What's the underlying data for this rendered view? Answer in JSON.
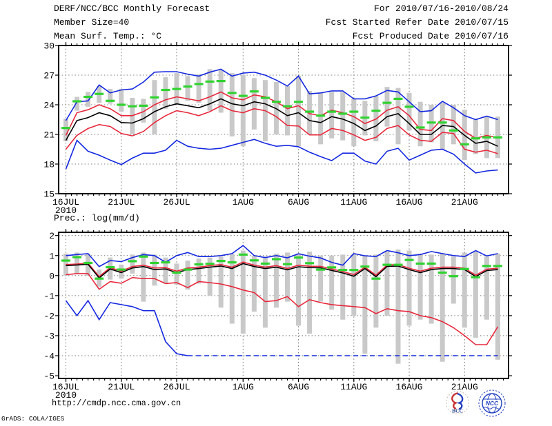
{
  "header": {
    "app_title": "DERF/NCC/BCC Monthly Forecast",
    "member_size": "Member Size=40",
    "forecast_range": "For 2010/07/16-2010/08/24",
    "refer_date": "Fcst Started Refer Date 2010/07/15",
    "produced_date": "Fcst Produced Date 2010/07/16"
  },
  "footer": {
    "url": "http://cmdp.ncc.cma.gov.cn",
    "credit": "GrADS: COLA/IGES"
  },
  "logos": {
    "bcc_label": "BCC",
    "ncc_label": "NCC"
  },
  "colors": {
    "blue": "#1428e0",
    "red": "#e8283c",
    "green": "#2fd32f",
    "black": "#000000",
    "bar_gray": "#c9c9c9",
    "grid_gray": "#7a7a7a",
    "logo_red": "#c83232",
    "logo_blue": "#2340c0",
    "logo_navy": "#1e3c8c",
    "logo_ring": "#c8b8a8"
  },
  "chart_data": [
    {
      "id": "temp",
      "type": "line",
      "title": "Mean Surf. Temp.: °C",
      "xlabel": "",
      "ylabel": "",
      "ylim": [
        15,
        30
      ],
      "y_ticks": [
        30,
        27,
        24,
        21,
        18,
        15
      ],
      "grid_y": [
        27,
        24,
        21,
        18
      ],
      "n_points": 40,
      "x_ticks": [
        {
          "i": 0,
          "label": "16JUL",
          "sub": "2010"
        },
        {
          "i": 5,
          "label": "21JUL"
        },
        {
          "i": 10,
          "label": "26JUL"
        },
        {
          "i": 16,
          "label": "1AUG"
        },
        {
          "i": 21,
          "label": "6AUG"
        },
        {
          "i": 26,
          "label": "11AUG"
        },
        {
          "i": 31,
          "label": "16AUG"
        },
        {
          "i": 36,
          "label": "21AUG"
        }
      ],
      "series": [
        {
          "name": "ensemble-max",
          "color_key": "blue",
          "values": [
            22.4,
            24.3,
            24.4,
            26.0,
            25.2,
            25.5,
            25.6,
            26.3,
            27.3,
            27.35,
            27.35,
            27.1,
            26.9,
            27.3,
            27.6,
            26.9,
            27.2,
            27.3,
            27.0,
            26.5,
            25.9,
            26.9,
            25.1,
            25.2,
            25.4,
            25.4,
            24.6,
            24.6,
            24.9,
            25.45,
            25.3,
            24.3,
            23.3,
            23.4,
            24.35,
            23.7,
            22.9,
            22.5,
            22.85,
            22.5
          ]
        },
        {
          "name": "upper-spread",
          "color_key": "red",
          "values": [
            20.9,
            23.2,
            23.5,
            24.0,
            23.6,
            22.9,
            22.9,
            23.3,
            24.0,
            24.5,
            24.8,
            24.6,
            24.4,
            24.8,
            25.3,
            24.7,
            24.5,
            25.0,
            24.8,
            24.3,
            23.6,
            23.9,
            23.1,
            22.9,
            23.45,
            23.2,
            22.8,
            22.1,
            22.55,
            23.45,
            23.8,
            22.9,
            21.5,
            21.4,
            22.6,
            22.4,
            21.3,
            20.6,
            20.9,
            20.65
          ]
        },
        {
          "name": "ensemble-mean",
          "color_key": "black",
          "values": [
            20.4,
            22.4,
            22.7,
            23.2,
            22.9,
            22.2,
            22.15,
            22.6,
            23.3,
            23.8,
            24.1,
            23.9,
            23.7,
            24.1,
            24.6,
            24.1,
            23.9,
            24.3,
            24.1,
            23.6,
            22.9,
            23.2,
            22.4,
            22.2,
            22.8,
            22.55,
            22.1,
            21.4,
            21.85,
            22.8,
            23.1,
            22.1,
            21.0,
            21.0,
            21.9,
            21.8,
            20.9,
            20.1,
            20.3,
            19.8
          ]
        },
        {
          "name": "lower-spread",
          "color_key": "red",
          "values": [
            19.5,
            20.9,
            21.6,
            22.0,
            21.8,
            21.1,
            20.85,
            21.3,
            22.2,
            22.9,
            23.4,
            23.2,
            22.9,
            23.3,
            23.9,
            23.4,
            23.2,
            23.6,
            23.4,
            22.8,
            21.9,
            21.85,
            20.95,
            20.95,
            21.6,
            21.4,
            20.95,
            20.4,
            20.7,
            21.6,
            21.9,
            20.95,
            20.4,
            20.3,
            21.2,
            21.1,
            19.5,
            19.2,
            19.4,
            19.05
          ]
        },
        {
          "name": "ensemble-min",
          "color_key": "blue",
          "values": [
            17.5,
            20.4,
            19.3,
            18.9,
            18.4,
            17.95,
            18.6,
            19.1,
            19.1,
            19.4,
            20.4,
            19.8,
            19.6,
            19.5,
            19.6,
            19.9,
            20.2,
            20.5,
            20.1,
            19.8,
            19.9,
            19.75,
            19.2,
            18.75,
            18.35,
            19.1,
            19.1,
            18.3,
            18.0,
            19.3,
            19.6,
            18.4,
            18.9,
            19.4,
            19.5,
            19.0,
            18.0,
            17.1,
            17.3,
            17.4
          ]
        }
      ],
      "dashes": {
        "name": "observation",
        "color_key": "green",
        "values": [
          21.65,
          24.35,
          24.8,
          25.1,
          24.4,
          24.0,
          23.85,
          23.9,
          24.75,
          25.5,
          25.6,
          25.85,
          26.1,
          26.35,
          26.4,
          25.2,
          24.9,
          25.35,
          24.7,
          24.3,
          23.85,
          24.3,
          23.3,
          22.9,
          23.3,
          23.1,
          23.3,
          22.7,
          23.4,
          24.2,
          24.6,
          23.8,
          21.7,
          22.2,
          22.2,
          21.4,
          20.0,
          20.6,
          20.7,
          20.7
        ]
      },
      "bars": {
        "name": "member-spread",
        "color_key": "bar_gray",
        "ranges": [
          [
            20.3,
            22.6
          ],
          [
            23.4,
            24.8
          ],
          [
            23.8,
            25.3
          ],
          [
            24.2,
            25.9
          ],
          [
            24.1,
            25.6
          ],
          [
            23.3,
            25.6
          ],
          [
            21.0,
            24.7
          ],
          [
            22.2,
            24.6
          ],
          [
            21.0,
            26.5
          ],
          [
            23.6,
            26.8
          ],
          [
            24.1,
            27.2
          ],
          [
            24.4,
            26.9
          ],
          [
            24.2,
            27.1
          ],
          [
            23.4,
            27.6
          ],
          [
            23.2,
            27.5
          ],
          [
            20.8,
            27.2
          ],
          [
            19.8,
            27.0
          ],
          [
            21.5,
            26.7
          ],
          [
            20.3,
            26.5
          ],
          [
            21.0,
            26.3
          ],
          [
            20.9,
            25.9
          ],
          [
            19.8,
            26.9
          ],
          [
            21.0,
            25.4
          ],
          [
            20.0,
            25.2
          ],
          [
            20.6,
            25.3
          ],
          [
            20.4,
            25.3
          ],
          [
            19.8,
            24.6
          ],
          [
            20.9,
            24.4
          ],
          [
            20.3,
            24.9
          ],
          [
            21.8,
            25.8
          ],
          [
            20.0,
            25.7
          ],
          [
            21.4,
            25.2
          ],
          [
            19.8,
            24.3
          ],
          [
            20.2,
            24.0
          ],
          [
            19.5,
            24.2
          ],
          [
            20.0,
            24.0
          ],
          [
            18.4,
            23.5
          ],
          [
            19.0,
            22.5
          ],
          [
            18.6,
            22.8
          ],
          [
            18.6,
            22.8
          ]
        ]
      }
    },
    {
      "id": "prec",
      "type": "line",
      "title": "Prec.: log(mm/d)",
      "xlabel": "",
      "ylabel": "",
      "ylim": [
        -5,
        2
      ],
      "y_ticks": [
        2,
        1,
        0,
        -1,
        -2,
        -3,
        -4,
        -5
      ],
      "grid_y": [
        2,
        1,
        0,
        -1,
        -2,
        -3,
        -4
      ],
      "n_points": 40,
      "x_ticks": [
        {
          "i": 0,
          "label": "16JUL",
          "sub": "2010"
        },
        {
          "i": 5,
          "label": "21JUL"
        },
        {
          "i": 10,
          "label": "26JUL"
        },
        {
          "i": 16,
          "label": "1AUG"
        },
        {
          "i": 21,
          "label": "6AUG"
        },
        {
          "i": 26,
          "label": "11AUG"
        },
        {
          "i": 31,
          "label": "16AUG"
        },
        {
          "i": 36,
          "label": "21AUG"
        }
      ],
      "series": [
        {
          "name": "ensemble-max",
          "color_key": "blue",
          "values": [
            1.0,
            1.05,
            1.1,
            0.45,
            0.75,
            0.7,
            0.9,
            1.05,
            1.0,
            0.67,
            1.0,
            1.15,
            0.95,
            0.95,
            1.0,
            1.1,
            1.5,
            1.0,
            0.9,
            1.0,
            0.89,
            1.09,
            0.97,
            0.88,
            0.66,
            0.52,
            1.1,
            0.99,
            0.95,
            1.25,
            1.14,
            1.0,
            1.05,
            1.2,
            1.1,
            1.0,
            0.95,
            1.25,
            0.98,
            1.1
          ]
        },
        {
          "name": "upper-spread",
          "color_key": "red",
          "values": [
            0.55,
            0.58,
            0.62,
            -0.05,
            0.4,
            0.22,
            0.45,
            0.52,
            0.38,
            0.4,
            0.22,
            0.38,
            0.42,
            0.5,
            0.55,
            0.42,
            0.68,
            0.52,
            0.42,
            0.5,
            0.36,
            0.52,
            0.47,
            0.46,
            0.33,
            0.2,
            0.05,
            0.42,
            0.02,
            0.53,
            0.55,
            0.37,
            0.22,
            0.37,
            0.42,
            0.42,
            0.37,
            0.02,
            0.32,
            0.37
          ]
        },
        {
          "name": "ensemble-mean",
          "color_key": "black",
          "values": [
            0.5,
            0.53,
            0.57,
            -0.12,
            0.33,
            0.15,
            0.38,
            0.45,
            0.3,
            0.33,
            0.15,
            0.3,
            0.35,
            0.42,
            0.48,
            0.35,
            0.6,
            0.45,
            0.35,
            0.42,
            0.29,
            0.44,
            0.4,
            0.39,
            0.26,
            0.13,
            -0.03,
            0.35,
            -0.05,
            0.46,
            0.48,
            0.3,
            0.15,
            0.3,
            0.35,
            0.35,
            0.3,
            -0.05,
            0.25,
            0.3
          ]
        },
        {
          "name": "lower-spread",
          "color_key": "red",
          "values": [
            0.05,
            0.1,
            0.1,
            -0.68,
            -0.3,
            -0.38,
            -0.1,
            -0.15,
            -0.15,
            -0.4,
            -0.35,
            -0.6,
            -0.3,
            -0.35,
            -0.42,
            -0.55,
            -0.72,
            -0.85,
            -1.3,
            -1.25,
            -1.05,
            -1.55,
            -1.2,
            -1.35,
            -1.45,
            -1.5,
            -1.55,
            -1.6,
            -1.9,
            -1.65,
            -1.75,
            -1.8,
            -2.0,
            -2.1,
            -2.3,
            -2.6,
            -3.0,
            -3.45,
            -3.45,
            -2.55
          ]
        },
        {
          "name": "ensemble-min",
          "color_key": "blue",
          "dashed_after_index": 11,
          "values": [
            -1.25,
            -2.0,
            -1.25,
            -2.2,
            -1.35,
            -1.45,
            -1.55,
            -1.75,
            -1.75,
            -3.3,
            -3.9,
            -4.0,
            -4.0,
            -4.0,
            -4.0,
            -4.0,
            -4.0,
            -4.0,
            -4.0,
            -4.0,
            -4.0,
            -4.0,
            -4.0,
            -4.0,
            -4.0,
            -4.0,
            -4.0,
            -4.0,
            -4.0,
            -4.0,
            -4.0,
            -4.0,
            -4.0,
            -4.0,
            -4.0,
            -4.0,
            -4.0,
            -4.0,
            -4.0,
            -4.0
          ]
        }
      ],
      "dashes": {
        "name": "observation",
        "color_key": "green",
        "values": [
          0.75,
          0.92,
          0.63,
          -0.15,
          0.42,
          0.3,
          0.72,
          0.95,
          0.63,
          0.66,
          0.15,
          0.3,
          0.56,
          0.59,
          0.73,
          0.66,
          1.05,
          0.76,
          0.6,
          0.82,
          0.57,
          0.9,
          0.62,
          0.3,
          0.41,
          0.28,
          0.28,
          0.45,
          -0.15,
          0.54,
          0.54,
          0.78,
          0.6,
          0.6,
          0.15,
          -0.03,
          0.33,
          -0.08,
          0.48,
          0.48
        ]
      },
      "bars": {
        "name": "member-spread",
        "color_key": "bar_gray",
        "ranges": [
          [
            0.0,
            1.1
          ],
          [
            0.1,
            1.15
          ],
          [
            0.0,
            1.1
          ],
          [
            -0.55,
            0.3
          ],
          [
            -0.2,
            0.9
          ],
          [
            -0.15,
            0.55
          ],
          [
            0.1,
            1.05
          ],
          [
            -1.3,
            1.15
          ],
          [
            -0.5,
            1.05
          ],
          [
            -0.4,
            0.9
          ],
          [
            -0.45,
            0.6
          ],
          [
            -0.7,
            0.75
          ],
          [
            -0.4,
            0.85
          ],
          [
            -1.0,
            0.9
          ],
          [
            -1.6,
            0.95
          ],
          [
            -2.4,
            1.1
          ],
          [
            -2.9,
            1.25
          ],
          [
            -1.8,
            1.0
          ],
          [
            -2.6,
            0.95
          ],
          [
            -1.6,
            1.1
          ],
          [
            -1.3,
            1.15
          ],
          [
            -2.5,
            1.1
          ],
          [
            -2.9,
            1.2
          ],
          [
            -1.3,
            1.0
          ],
          [
            -1.7,
            1.0
          ],
          [
            -2.2,
            1.05
          ],
          [
            -2.0,
            1.1
          ],
          [
            -3.9,
            1.0
          ],
          [
            -2.6,
            1.05
          ],
          [
            -2.0,
            1.2
          ],
          [
            -4.4,
            1.3
          ],
          [
            -2.5,
            1.25
          ],
          [
            -2.2,
            1.1
          ],
          [
            -2.4,
            1.05
          ],
          [
            -4.3,
            1.1
          ],
          [
            -1.4,
            0.95
          ],
          [
            -2.6,
            1.15
          ],
          [
            -3.1,
            1.2
          ],
          [
            -2.2,
            0.95
          ],
          [
            -4.2,
            1.1
          ]
        ]
      }
    }
  ]
}
